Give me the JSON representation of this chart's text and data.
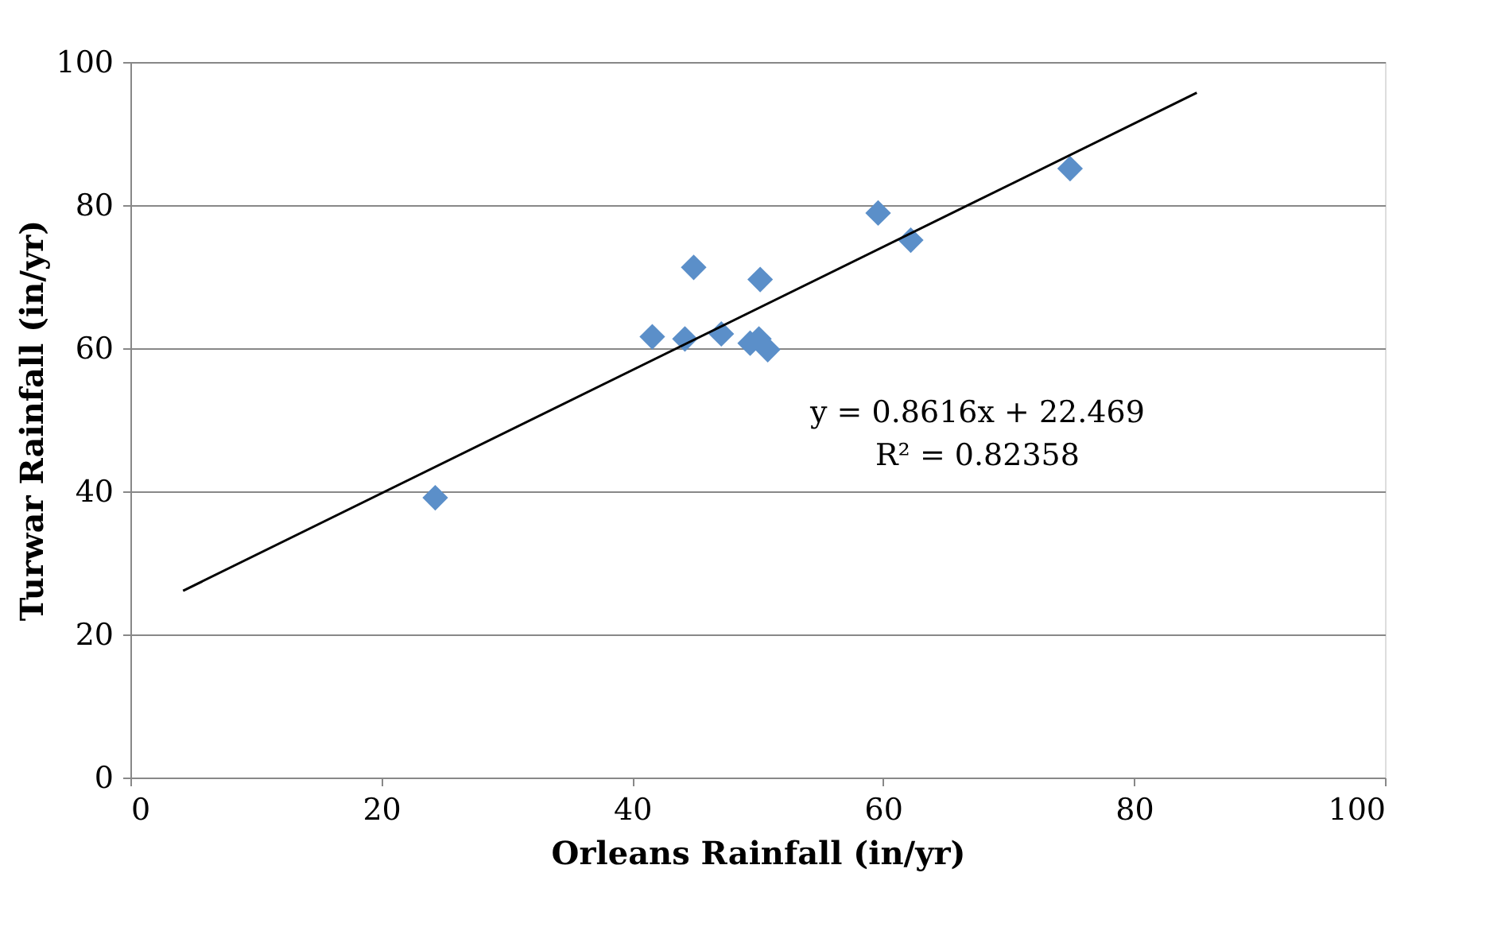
{
  "chart_data": {
    "type": "scatter",
    "xlabel": "Orleans Rainfall (in/yr)",
    "ylabel": "Turwar Rainfall (in/yr)",
    "xlim": [
      0,
      100
    ],
    "xticks": [
      0,
      20,
      40,
      60,
      80,
      100
    ],
    "ylim": [
      0,
      100
    ],
    "yticks": [
      0,
      20,
      40,
      60,
      80,
      100
    ],
    "grid": "y",
    "series": [
      {
        "marker": "diamond",
        "color": "#5b8fc9",
        "x": [
          24.3,
          41.6,
          44.2,
          44.9,
          47.1,
          49.4,
          50.1,
          50.8,
          50.2,
          59.6,
          62.2,
          74.9
        ],
        "values": [
          39.1,
          61.6,
          61.3,
          71.3,
          62.0,
          60.7,
          61.3,
          59.8,
          69.6,
          78.9,
          75.1,
          85.1
        ]
      },
      {
        "type": "line",
        "color": "#000000",
        "line_style": "solid",
        "x": [
          4.2,
          85
        ],
        "values": [
          26.1,
          95.7
        ]
      }
    ],
    "annotations": [
      "y = 0.8616x + 22.469",
      "R² = 0.82358"
    ]
  }
}
